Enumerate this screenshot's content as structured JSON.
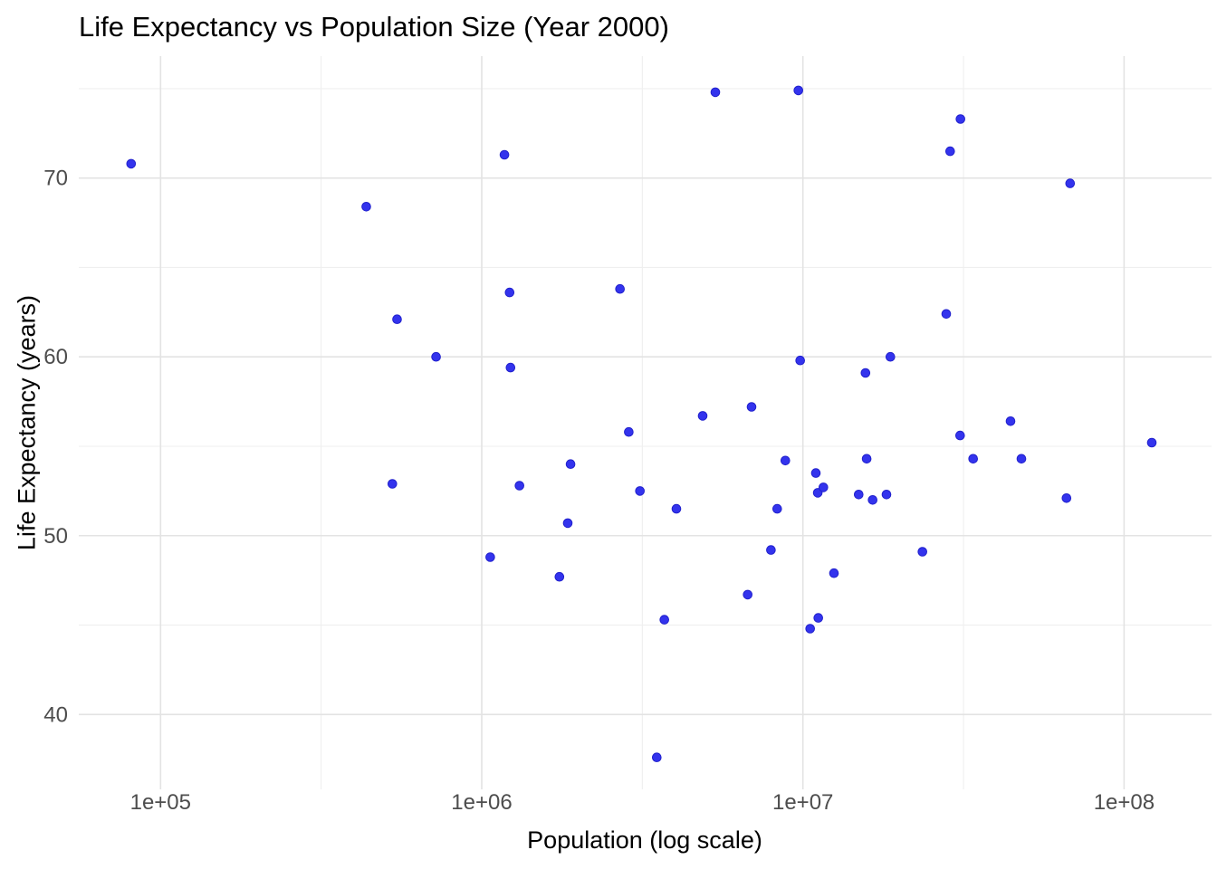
{
  "title": "Life Expectancy vs Population Size (Year 2000)",
  "chart_data": {
    "type": "scatter",
    "title": "Life Expectancy vs Population Size (Year 2000)",
    "xlabel": "Population (log scale)",
    "ylabel": "Life Expectancy (years)",
    "x_scale": "log10",
    "x_range": [
      55600,
      187000000
    ],
    "y_range": [
      35.8,
      76.8
    ],
    "x_ticks": [
      "1e+05",
      "1e+06",
      "1e+07",
      "1e+08"
    ],
    "x_tick_values": [
      100000,
      1000000,
      10000000,
      100000000
    ],
    "x_minor_gridlines": [
      316228,
      3162278,
      31622777
    ],
    "y_ticks": [
      40,
      50,
      60,
      70
    ],
    "y_minor_gridlines": [
      45,
      55,
      65,
      75
    ],
    "grid": "major and minor, light gray on white (ggplot minimal style)",
    "legend": "none",
    "point_color": "#3333ed",
    "point_edge_color": "#2121cd",
    "major_grid_color": "#e3e3e3",
    "minor_grid_color": "#efefef",
    "tick_label_color": "#4d4d4d",
    "points": [
      {
        "population": 81000,
        "life_expectancy": 70.8
      },
      {
        "population": 437000,
        "life_expectancy": 68.4
      },
      {
        "population": 527000,
        "life_expectancy": 52.9
      },
      {
        "population": 545000,
        "life_expectancy": 62.1
      },
      {
        "population": 721000,
        "life_expectancy": 60.0
      },
      {
        "population": 1063000,
        "life_expectancy": 48.8
      },
      {
        "population": 1177000,
        "life_expectancy": 71.3
      },
      {
        "population": 1221000,
        "life_expectancy": 63.6
      },
      {
        "population": 1229000,
        "life_expectancy": 59.4
      },
      {
        "population": 1311000,
        "life_expectancy": 52.8
      },
      {
        "population": 1745000,
        "life_expectancy": 47.7
      },
      {
        "population": 1853000,
        "life_expectancy": 50.7
      },
      {
        "population": 1890000,
        "life_expectancy": 54.0
      },
      {
        "population": 2695000,
        "life_expectancy": 63.8
      },
      {
        "population": 2869000,
        "life_expectancy": 55.8
      },
      {
        "population": 3109000,
        "life_expectancy": 52.5
      },
      {
        "population": 3508000,
        "life_expectancy": 37.6
      },
      {
        "population": 3705000,
        "life_expectancy": 45.3
      },
      {
        "population": 4039000,
        "life_expectancy": 51.5
      },
      {
        "population": 4874000,
        "life_expectancy": 56.7
      },
      {
        "population": 5337000,
        "life_expectancy": 74.8
      },
      {
        "population": 6731000,
        "life_expectancy": 46.7
      },
      {
        "population": 6922000,
        "life_expectancy": 57.2
      },
      {
        "population": 7950000,
        "life_expectancy": 49.2
      },
      {
        "population": 8316000,
        "life_expectancy": 51.5
      },
      {
        "population": 8818000,
        "life_expectancy": 54.2
      },
      {
        "population": 9680000,
        "life_expectancy": 74.9
      },
      {
        "population": 9809000,
        "life_expectancy": 59.8
      },
      {
        "population": 10530000,
        "life_expectancy": 44.8
      },
      {
        "population": 10970000,
        "life_expectancy": 53.5
      },
      {
        "population": 11120000,
        "life_expectancy": 52.4
      },
      {
        "population": 11170000,
        "life_expectancy": 45.4
      },
      {
        "population": 11580000,
        "life_expectancy": 52.7
      },
      {
        "population": 12490000,
        "life_expectancy": 47.9
      },
      {
        "population": 14920000,
        "life_expectancy": 52.3
      },
      {
        "population": 15660000,
        "life_expectancy": 59.1
      },
      {
        "population": 15790000,
        "life_expectancy": 54.3
      },
      {
        "population": 16490000,
        "life_expectancy": 52.0
      },
      {
        "population": 18210000,
        "life_expectancy": 52.3
      },
      {
        "population": 18720000,
        "life_expectancy": 60.0
      },
      {
        "population": 23560000,
        "life_expectancy": 49.1
      },
      {
        "population": 27950000,
        "life_expectancy": 62.4
      },
      {
        "population": 28740000,
        "life_expectancy": 71.5
      },
      {
        "population": 30870000,
        "life_expectancy": 55.6
      },
      {
        "population": 30950000,
        "life_expectancy": 73.3
      },
      {
        "population": 33880000,
        "life_expectancy": 54.3
      },
      {
        "population": 44310000,
        "life_expectancy": 56.4
      },
      {
        "population": 47900000,
        "life_expectancy": 54.3
      },
      {
        "population": 66160000,
        "life_expectancy": 52.1
      },
      {
        "population": 67900000,
        "life_expectancy": 69.7
      },
      {
        "population": 122000000,
        "life_expectancy": 55.2
      }
    ]
  }
}
